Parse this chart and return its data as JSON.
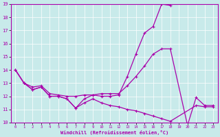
{
  "xlabel": "Windchill (Refroidissement éolien,°C)",
  "bg_color": "#c8eaea",
  "grid_color": "#b0d0d0",
  "line_color": "#aa00aa",
  "xlim": [
    -0.5,
    23.5
  ],
  "ylim": [
    10,
    19
  ],
  "xticks": [
    0,
    1,
    2,
    3,
    4,
    5,
    6,
    7,
    8,
    9,
    10,
    11,
    12,
    13,
    14,
    15,
    16,
    17,
    18,
    19,
    20,
    21,
    22,
    23
  ],
  "yticks": [
    10,
    11,
    12,
    13,
    14,
    15,
    16,
    17,
    18,
    19
  ],
  "line1_x": [
    0,
    1,
    2,
    3,
    4,
    5,
    6,
    7,
    8,
    9,
    10,
    11,
    12,
    13,
    14,
    15,
    16,
    17,
    18
  ],
  "line1_y": [
    14.0,
    13.0,
    12.5,
    12.7,
    12.0,
    12.0,
    11.8,
    11.1,
    11.8,
    12.1,
    12.0,
    12.0,
    12.1,
    13.5,
    15.2,
    16.8,
    17.3,
    19.0,
    18.9
  ],
  "line2_x": [
    0,
    1,
    2,
    3,
    4,
    5,
    6,
    7,
    8,
    9,
    10,
    11,
    12,
    13,
    14,
    15,
    16,
    17,
    18,
    20,
    21,
    22,
    23
  ],
  "line2_y": [
    14.0,
    13.0,
    12.7,
    12.8,
    12.2,
    12.1,
    12.0,
    12.0,
    12.1,
    12.1,
    12.2,
    12.2,
    12.2,
    12.8,
    13.5,
    14.3,
    15.2,
    15.6,
    15.6,
    9.8,
    11.9,
    11.3,
    11.3
  ],
  "line3_x": [
    0,
    1,
    2,
    3,
    4,
    5,
    6,
    7,
    8,
    9,
    10,
    11,
    12,
    13,
    14,
    15,
    16,
    17,
    18,
    21,
    22,
    23
  ],
  "line3_y": [
    14.0,
    13.0,
    12.5,
    12.7,
    12.0,
    12.0,
    11.8,
    11.1,
    11.5,
    11.8,
    11.5,
    11.3,
    11.2,
    11.0,
    10.9,
    10.7,
    10.5,
    10.3,
    10.1,
    11.3,
    11.2,
    11.2
  ]
}
